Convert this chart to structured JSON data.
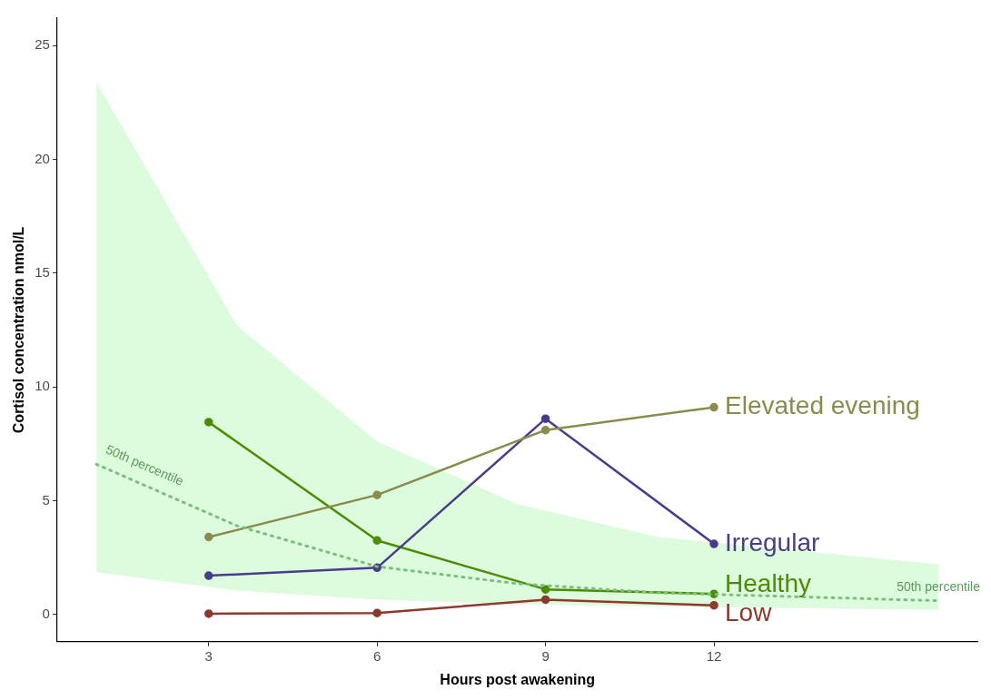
{
  "chart_data": {
    "type": "line",
    "xlabel": "Hours post awakening",
    "ylabel": "Cortisol concentration nmol/L",
    "x": [
      3,
      6,
      9,
      12
    ],
    "xlim": [
      0.3,
      16.7
    ],
    "xticks": [
      3,
      6,
      9,
      12
    ],
    "ylim": [
      -1.2,
      26.2
    ],
    "yticks": [
      0,
      5,
      10,
      15,
      20,
      25
    ],
    "grid": false,
    "legend": false,
    "marker": "circle",
    "line_style": "solid",
    "series": [
      {
        "name": "50th percentile",
        "type": "line",
        "marker": "none",
        "line_style": "dotted",
        "color": "#7dbf7d",
        "x": [
          1,
          3.5,
          6,
          8.5,
          11,
          16
        ],
        "values": [
          6.6,
          3.9,
          2.1,
          1.35,
          0.95,
          0.6
        ],
        "lower": [
          1.85,
          1.05,
          0.65,
          0.45,
          0.35,
          0.2
        ],
        "upper": [
          23.4,
          12.7,
          7.6,
          4.85,
          3.4,
          2.2
        ]
      },
      {
        "name": "Elevated evening",
        "color": "#8b8b4e",
        "values": [
          3.4,
          5.25,
          8.1,
          9.1
        ]
      },
      {
        "name": "Irregular",
        "color": "#483d8b",
        "values": [
          1.7,
          2.05,
          8.6,
          3.1
        ]
      },
      {
        "name": "Healthy",
        "color": "#4b8c00",
        "values": [
          8.45,
          3.25,
          1.1,
          0.9
        ]
      },
      {
        "name": "Low",
        "color": "#8b3a2b",
        "values": [
          0.03,
          0.06,
          0.65,
          0.4
        ]
      }
    ]
  }
}
